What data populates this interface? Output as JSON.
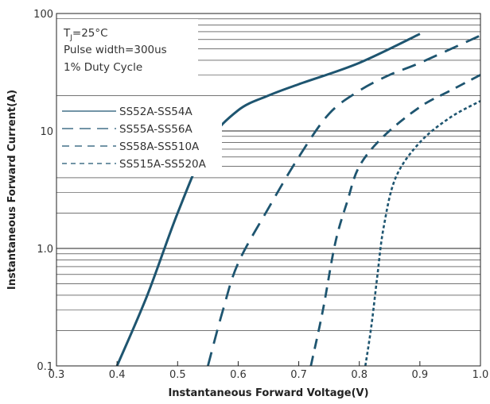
{
  "chart_data": {
    "type": "line",
    "xlabel": "Instantaneous Forward Voltage(V)",
    "ylabel": "Instantaneous Forward Current(A)",
    "x_range": [
      0.3,
      1.0
    ],
    "y_range": [
      0.1,
      100
    ],
    "y_scale": "log",
    "x_ticks": [
      0.3,
      0.4,
      0.5,
      0.6,
      0.7,
      0.8,
      0.9,
      1.0
    ],
    "x_tick_labels": [
      "0.3",
      "0.4",
      "0.5",
      "0.6",
      "0.7",
      "0.8",
      "0.9",
      "1.0"
    ],
    "y_ticks": [
      0.1,
      1,
      10,
      100
    ],
    "y_tick_labels": [
      "0.1",
      "1.0",
      "10",
      "100"
    ],
    "grid": true,
    "legend_position": "left",
    "notes": {
      "condition_prefix": "T",
      "condition_sub": "J",
      "condition_suffix": "=25°C",
      "pulse": "Pulse width=300us",
      "duty": "1% Duty Cycle"
    },
    "colors": {
      "line": "#1e5570",
      "frame": "#222222",
      "grid": "#222222"
    },
    "series": [
      {
        "name": "SS52A-SS54A",
        "dash": "solid",
        "points": [
          [
            0.4,
            0.1
          ],
          [
            0.45,
            0.4
          ],
          [
            0.5,
            2
          ],
          [
            0.55,
            7.8
          ],
          [
            0.6,
            15
          ],
          [
            0.65,
            20
          ],
          [
            0.7,
            25
          ],
          [
            0.8,
            38
          ],
          [
            0.9,
            67
          ]
        ]
      },
      {
        "name": "SS55A-SS56A",
        "dash": "long",
        "points": [
          [
            0.55,
            0.1
          ],
          [
            0.575,
            0.3
          ],
          [
            0.6,
            0.75
          ],
          [
            0.65,
            2.2
          ],
          [
            0.7,
            6
          ],
          [
            0.75,
            14
          ],
          [
            0.8,
            22
          ],
          [
            0.85,
            30
          ],
          [
            0.9,
            38
          ],
          [
            1.0,
            65
          ]
        ]
      },
      {
        "name": "SS58A-SS510A",
        "dash": "medium",
        "points": [
          [
            0.72,
            0.1
          ],
          [
            0.74,
            0.3
          ],
          [
            0.76,
            1.1
          ],
          [
            0.78,
            2.5
          ],
          [
            0.8,
            5
          ],
          [
            0.84,
            9
          ],
          [
            0.9,
            16
          ],
          [
            0.95,
            22
          ],
          [
            1.0,
            30
          ]
        ]
      },
      {
        "name": "SS515A-SS520A",
        "dash": "short",
        "points": [
          [
            0.81,
            0.1
          ],
          [
            0.82,
            0.22
          ],
          [
            0.83,
            0.6
          ],
          [
            0.84,
            1.5
          ],
          [
            0.86,
            4
          ],
          [
            0.9,
            8
          ],
          [
            0.95,
            13
          ],
          [
            1.0,
            18
          ]
        ]
      }
    ]
  }
}
